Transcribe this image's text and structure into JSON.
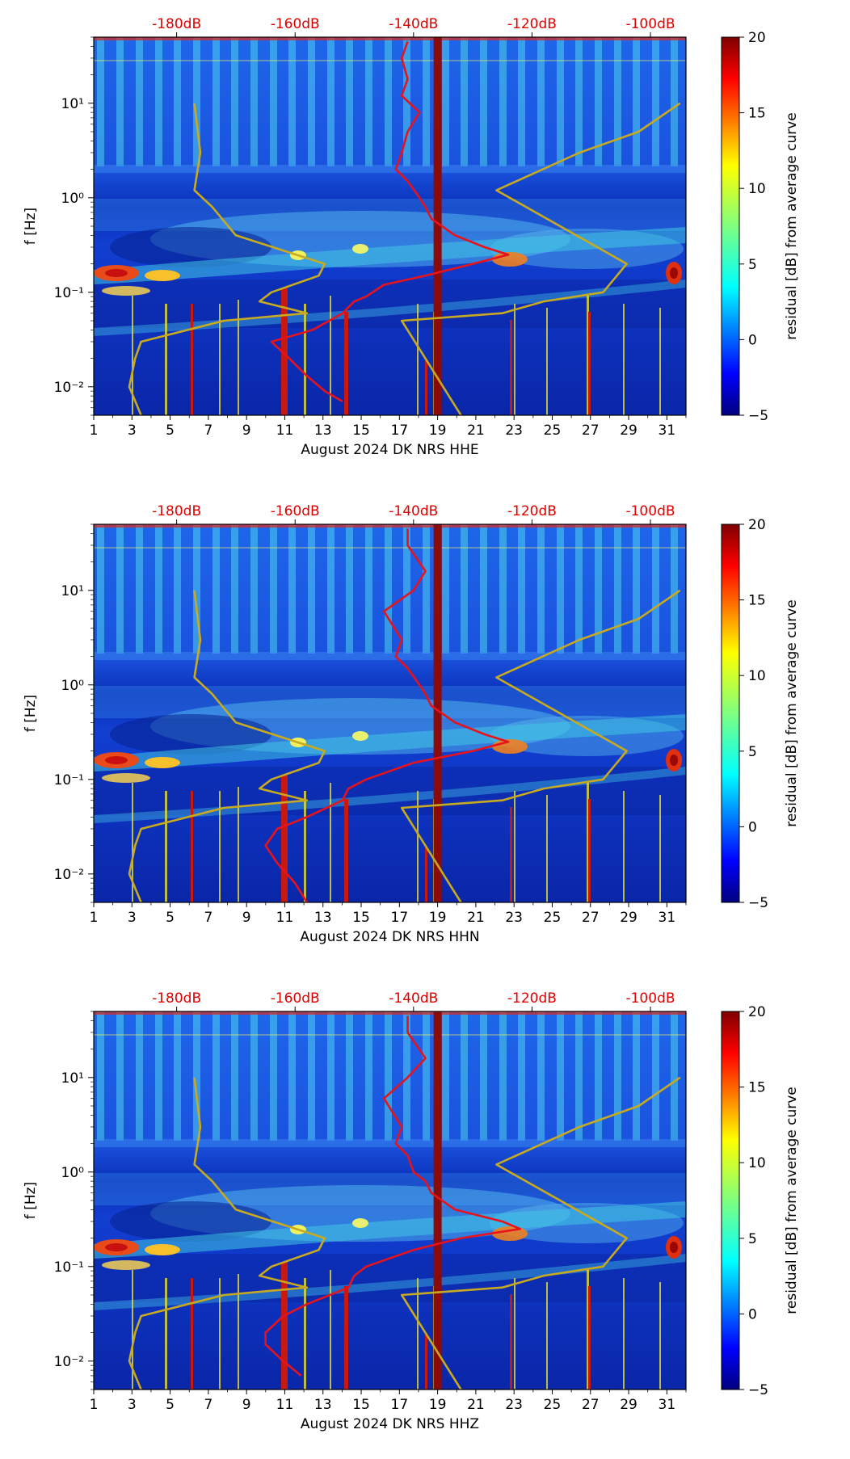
{
  "colors": {
    "noise_model": "#c8aa20",
    "median": "#e8131a",
    "day_marker": "#8b0a0a",
    "top_axis_text": "#e00000"
  },
  "colorbar": {
    "label": "residual [dB] from average curve",
    "ticks": [
      "20",
      "15",
      "10",
      "5",
      "0",
      "−5"
    ],
    "range": [
      -5,
      20
    ]
  },
  "chart_data": [
    {
      "type": "heatmap",
      "xlabel": "August 2024 DK NRS  HHE",
      "ylabel": "f [Hz]",
      "x_ticks": [
        "1",
        "3",
        "5",
        "7",
        "9",
        "11",
        "13",
        "15",
        "17",
        "19",
        "21",
        "23",
        "25",
        "27",
        "29",
        "31"
      ],
      "y_ticks": [
        "10⁻²",
        "10⁻¹",
        "10⁰",
        "10¹"
      ],
      "top_ticks": [
        "-180dB",
        "-160dB",
        "-140dB",
        "-120dB",
        "-100dB"
      ],
      "xlim": [
        1,
        32
      ],
      "ylim_hz": [
        0.005,
        50
      ],
      "top_xlim_db": [
        -194,
        -94
      ],
      "marker_day": 19,
      "median_db": [
        [
          0.007,
          -152
        ],
        [
          0.009,
          -155
        ],
        [
          0.013,
          -158
        ],
        [
          0.02,
          -161
        ],
        [
          0.03,
          -164
        ],
        [
          0.04,
          -157
        ],
        [
          0.06,
          -152
        ],
        [
          0.08,
          -150
        ],
        [
          0.09,
          -148
        ],
        [
          0.12,
          -145
        ],
        [
          0.15,
          -138
        ],
        [
          0.2,
          -130
        ],
        [
          0.25,
          -124
        ],
        [
          0.3,
          -128
        ],
        [
          0.4,
          -133
        ],
        [
          0.6,
          -137
        ],
        [
          0.8,
          -138
        ],
        [
          1,
          -139
        ],
        [
          1.5,
          -141
        ],
        [
          2,
          -143
        ],
        [
          3,
          -142
        ],
        [
          5,
          -141
        ],
        [
          8,
          -139
        ],
        [
          12,
          -142
        ],
        [
          18,
          -141
        ],
        [
          30,
          -142
        ],
        [
          45,
          -141
        ]
      ]
    },
    {
      "type": "heatmap",
      "xlabel": "August 2024 DK NRS  HHN",
      "ylabel": "f [Hz]",
      "x_ticks": [
        "1",
        "3",
        "5",
        "7",
        "9",
        "11",
        "13",
        "15",
        "17",
        "19",
        "21",
        "23",
        "25",
        "27",
        "29",
        "31"
      ],
      "y_ticks": [
        "10⁻²",
        "10⁻¹",
        "10⁰",
        "10¹"
      ],
      "top_ticks": [
        "-180dB",
        "-160dB",
        "-140dB",
        "-120dB",
        "-100dB"
      ],
      "xlim": [
        1,
        32
      ],
      "ylim_hz": [
        0.005,
        50
      ],
      "top_xlim_db": [
        -194,
        -94
      ],
      "marker_day": 19,
      "median_db": [
        [
          0.005,
          -158
        ],
        [
          0.008,
          -160
        ],
        [
          0.013,
          -163
        ],
        [
          0.02,
          -165
        ],
        [
          0.03,
          -163
        ],
        [
          0.04,
          -158
        ],
        [
          0.06,
          -152
        ],
        [
          0.08,
          -151
        ],
        [
          0.1,
          -148
        ],
        [
          0.15,
          -140
        ],
        [
          0.2,
          -130
        ],
        [
          0.25,
          -124
        ],
        [
          0.3,
          -128
        ],
        [
          0.4,
          -133
        ],
        [
          0.6,
          -137
        ],
        [
          0.8,
          -138
        ],
        [
          1,
          -139
        ],
        [
          1.5,
          -141
        ],
        [
          2,
          -143
        ],
        [
          3,
          -142
        ],
        [
          6,
          -145
        ],
        [
          10,
          -140
        ],
        [
          16,
          -138
        ],
        [
          30,
          -141
        ],
        [
          45,
          -141
        ]
      ]
    },
    {
      "type": "heatmap",
      "xlabel": "August 2024 DK NRS  HHZ",
      "ylabel": "f [Hz]",
      "x_ticks": [
        "1",
        "3",
        "5",
        "7",
        "9",
        "11",
        "13",
        "15",
        "17",
        "19",
        "21",
        "23",
        "25",
        "27",
        "29",
        "31"
      ],
      "y_ticks": [
        "10⁻²",
        "10⁻¹",
        "10⁰",
        "10¹"
      ],
      "top_ticks": [
        "-180dB",
        "-160dB",
        "-140dB",
        "-120dB",
        "-100dB"
      ],
      "xlim": [
        1,
        32
      ],
      "ylim_hz": [
        0.005,
        50
      ],
      "top_xlim_db": [
        -194,
        -94
      ],
      "marker_day": 19,
      "median_db": [
        [
          0.007,
          -159
        ],
        [
          0.01,
          -162
        ],
        [
          0.015,
          -165
        ],
        [
          0.02,
          -165
        ],
        [
          0.03,
          -162
        ],
        [
          0.04,
          -158
        ],
        [
          0.06,
          -151
        ],
        [
          0.08,
          -150
        ],
        [
          0.1,
          -148
        ],
        [
          0.15,
          -140
        ],
        [
          0.2,
          -132
        ],
        [
          0.25,
          -122
        ],
        [
          0.3,
          -125
        ],
        [
          0.4,
          -133
        ],
        [
          0.6,
          -137
        ],
        [
          0.8,
          -138
        ],
        [
          1,
          -140
        ],
        [
          1.5,
          -141
        ],
        [
          2,
          -143
        ],
        [
          3,
          -142
        ],
        [
          6,
          -145
        ],
        [
          10,
          -141
        ],
        [
          16,
          -138
        ],
        [
          30,
          -141
        ],
        [
          45,
          -141
        ]
      ]
    }
  ],
  "noise_model_low_db": [
    [
      0.005,
      -186
    ],
    [
      0.01,
      -188
    ],
    [
      0.02,
      -187
    ],
    [
      0.03,
      -186
    ],
    [
      0.05,
      -172
    ],
    [
      0.06,
      -158
    ],
    [
      0.08,
      -166
    ],
    [
      0.1,
      -164
    ],
    [
      0.15,
      -156
    ],
    [
      0.2,
      -155
    ],
    [
      0.4,
      -170
    ],
    [
      0.8,
      -174
    ],
    [
      1.2,
      -177
    ],
    [
      3,
      -176
    ],
    [
      10,
      -177
    ]
  ],
  "noise_model_high_db": [
    [
      0.005,
      -132
    ],
    [
      0.05,
      -142
    ],
    [
      0.06,
      -125
    ],
    [
      0.08,
      -118
    ],
    [
      0.1,
      -108
    ],
    [
      0.2,
      -104
    ],
    [
      1.2,
      -126
    ],
    [
      3,
      -112
    ],
    [
      5,
      -102
    ],
    [
      10,
      -95
    ]
  ]
}
